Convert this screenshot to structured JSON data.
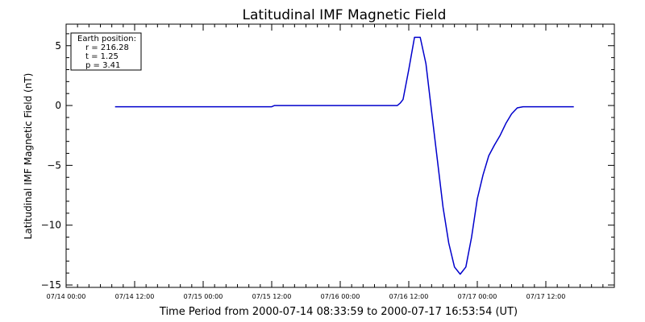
{
  "chart_data": {
    "type": "line",
    "title": "Latitudinal IMF Magnetic Field",
    "xlabel": "Time Period from 2000-07-14 08:33:59 to 2000-07-17 16:53:54 (UT)",
    "ylabel": "Latitudinal IMF Magnetic Field (nT)",
    "x_axis": {
      "range": [
        "2000-07-14 00:00",
        "2000-07-18 00:00"
      ],
      "ticks": [
        {
          "value": "2000-07-14 00:00",
          "label": "07/14 00:00"
        },
        {
          "value": "2000-07-14 12:00",
          "label": "07/14 12:00"
        },
        {
          "value": "2000-07-15 00:00",
          "label": "07/15 00:00"
        },
        {
          "value": "2000-07-15 12:00",
          "label": "07/15 12:00"
        },
        {
          "value": "2000-07-16 00:00",
          "label": "07/16 00:00"
        },
        {
          "value": "2000-07-16 12:00",
          "label": "07/16 12:00"
        },
        {
          "value": "2000-07-17 00:00",
          "label": "07/17 00:00"
        },
        {
          "value": "2000-07-17 12:00",
          "label": "07/17 12:00"
        }
      ]
    },
    "y_axis": {
      "range": [
        -15.2,
        6.8
      ],
      "ticks": [
        {
          "value": 5,
          "label": "5"
        },
        {
          "value": 0,
          "label": "0"
        },
        {
          "value": -5,
          "label": "−5"
        },
        {
          "value": -10,
          "label": "−10"
        },
        {
          "value": -15,
          "label": "−15"
        }
      ]
    },
    "grid": false,
    "legend": {
      "placement": "top-left",
      "lines": [
        "Earth position:",
        "r = 216.28",
        "t = 1.25",
        "p = 3.41"
      ]
    },
    "series": [
      {
        "color": "#0000cc",
        "points": [
          {
            "x": "2000-07-14 08:34",
            "y": -0.1
          },
          {
            "x": "2000-07-15 12:00",
            "y": -0.1
          },
          {
            "x": "2000-07-15 12:30",
            "y": 0.0
          },
          {
            "x": "2000-07-16 10:00",
            "y": 0.0
          },
          {
            "x": "2000-07-16 10:30",
            "y": 0.2
          },
          {
            "x": "2000-07-16 11:00",
            "y": 0.5
          },
          {
            "x": "2000-07-16 12:00",
            "y": 3.0
          },
          {
            "x": "2000-07-16 13:00",
            "y": 5.7
          },
          {
            "x": "2000-07-16 14:00",
            "y": 5.7
          },
          {
            "x": "2000-07-16 15:00",
            "y": 3.5
          },
          {
            "x": "2000-07-16 16:00",
            "y": -0.5
          },
          {
            "x": "2000-07-16 17:00",
            "y": -4.5
          },
          {
            "x": "2000-07-16 18:00",
            "y": -8.5
          },
          {
            "x": "2000-07-16 19:00",
            "y": -11.5
          },
          {
            "x": "2000-07-16 20:00",
            "y": -13.5
          },
          {
            "x": "2000-07-16 21:00",
            "y": -14.1
          },
          {
            "x": "2000-07-16 22:00",
            "y": -13.5
          },
          {
            "x": "2000-07-16 23:00",
            "y": -11.0
          },
          {
            "x": "2000-07-17 00:00",
            "y": -7.8
          },
          {
            "x": "2000-07-17 01:00",
            "y": -5.8
          },
          {
            "x": "2000-07-17 02:00",
            "y": -4.2
          },
          {
            "x": "2000-07-17 03:00",
            "y": -3.3
          },
          {
            "x": "2000-07-17 04:00",
            "y": -2.5
          },
          {
            "x": "2000-07-17 05:00",
            "y": -1.5
          },
          {
            "x": "2000-07-17 06:00",
            "y": -0.7
          },
          {
            "x": "2000-07-17 07:00",
            "y": -0.2
          },
          {
            "x": "2000-07-17 08:00",
            "y": -0.1
          },
          {
            "x": "2000-07-17 16:54",
            "y": -0.1
          }
        ]
      }
    ]
  }
}
